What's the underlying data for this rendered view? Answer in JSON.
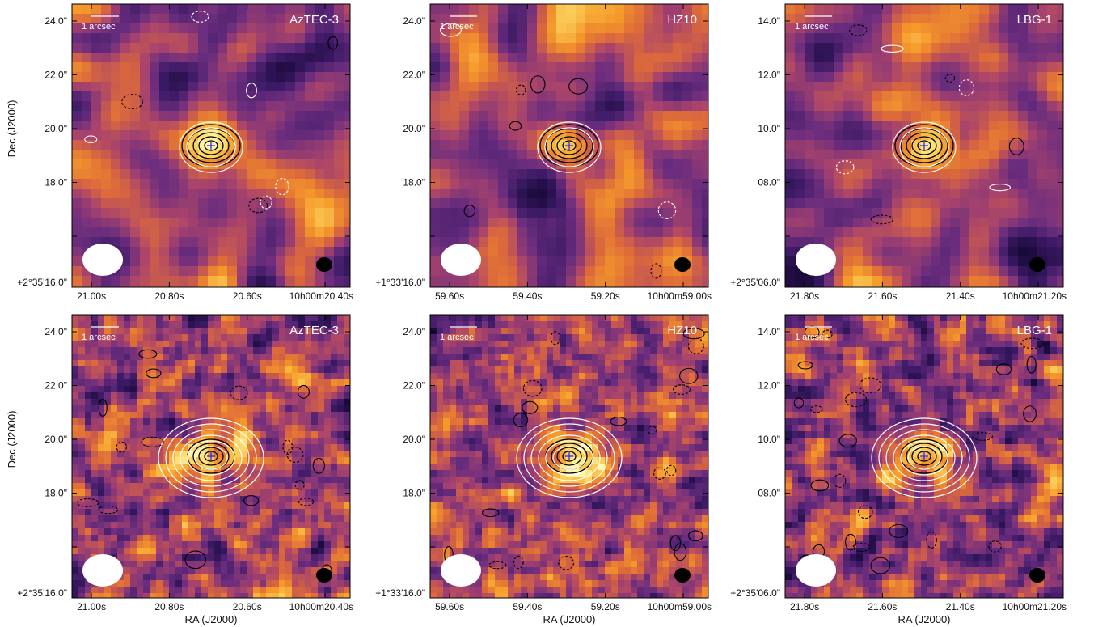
{
  "chart_data": {
    "type": "heatmap",
    "colormap": [
      "#1a0a3a",
      "#3c1a66",
      "#6b2d7e",
      "#a8436c",
      "#dd6a3a",
      "#f59a2a",
      "#fbd05a",
      "#fff6b0"
    ],
    "contour_colors": {
      "positive": "#000000",
      "negative": "#000000",
      "overlay": "#ffffff"
    },
    "scale_bar_label": "1 arcsec",
    "axis_titles": {
      "dec": "Dec (J2000)",
      "ra": "RA (J2000)"
    },
    "panels": [
      {
        "row": 1,
        "col": 1,
        "target": "AzTEC-3",
        "ra_ticks": [
          "21.00s",
          "20.80s",
          "20.60s",
          "10h00m20.40s"
        ],
        "dec_ticks": [
          "24.0\"",
          "22.0\"",
          "20.0\"",
          "18.0\"",
          "+2°35'16.0\""
        ],
        "source_offset": [
          0.0,
          0.0
        ]
      },
      {
        "row": 1,
        "col": 2,
        "target": "HZ10",
        "ra_ticks": [
          "59.60s",
          "59.40s",
          "59.20s",
          "10h00m59.00s"
        ],
        "dec_ticks": [
          "24.0\"",
          "22.0\"",
          "20.0\"",
          "18.0\"",
          "+1°33'16.0\""
        ],
        "source_offset": [
          0.0,
          0.0
        ]
      },
      {
        "row": 1,
        "col": 3,
        "target": "LBG-1",
        "ra_ticks": [
          "21.80s",
          "21.60s",
          "21.40s",
          "10h00m21.20s"
        ],
        "dec_ticks": [
          "14.0\"",
          "12.0\"",
          "10.0\"",
          "08.0\"",
          "+2°35'06.0\""
        ],
        "source_offset": [
          0.0,
          0.0
        ]
      },
      {
        "row": 2,
        "col": 1,
        "target": "AzTEC-3",
        "ra_ticks": [
          "21.00s",
          "20.80s",
          "20.60s",
          "10h00m20.40s"
        ],
        "dec_ticks": [
          "24.0\"",
          "22.0\"",
          "20.0\"",
          "18.0\"",
          "+2°35'16.0\""
        ],
        "source_offset": [
          0.0,
          0.0
        ]
      },
      {
        "row": 2,
        "col": 2,
        "target": "HZ10",
        "ra_ticks": [
          "59.60s",
          "59.40s",
          "59.20s",
          "10h00m59.00s"
        ],
        "dec_ticks": [
          "24.0\"",
          "22.0\"",
          "20.0\"",
          "18.0\"",
          "+1°33'16.0\""
        ],
        "source_offset": [
          0.0,
          0.0
        ]
      },
      {
        "row": 2,
        "col": 3,
        "target": "LBG-1",
        "ra_ticks": [
          "21.80s",
          "21.60s",
          "21.40s",
          "10h00m21.20s"
        ],
        "dec_ticks": [
          "14.0\"",
          "12.0\"",
          "10.0\"",
          "08.0\"",
          "+2°35'06.0\""
        ],
        "source_offset": [
          0.0,
          0.0
        ]
      }
    ]
  }
}
